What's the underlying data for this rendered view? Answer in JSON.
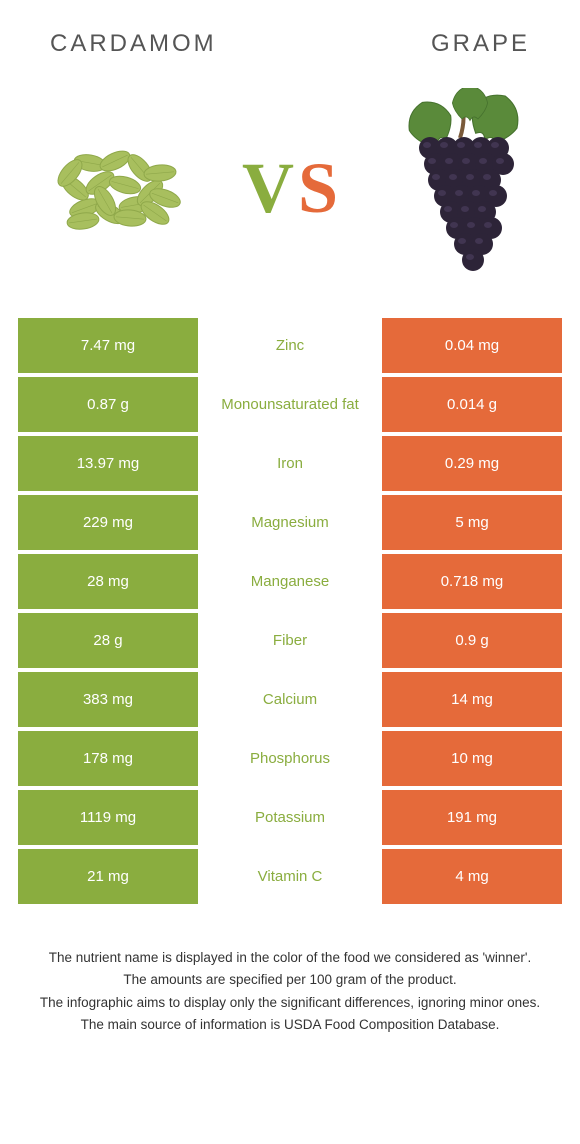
{
  "colors": {
    "green": "#8aad3f",
    "orange": "#e56a3a",
    "pod": "#a8bf5e",
    "podDark": "#8fa84a",
    "grapeBody": "#2d2438",
    "grapeHighlight": "#4a3d5c",
    "leaf": "#5a8a3a",
    "leafDark": "#46722e",
    "stem": "#7a5a3a"
  },
  "header": {
    "left": "Cardamom",
    "right": "Grape"
  },
  "vs": {
    "v": "V",
    "s": "S"
  },
  "rows": [
    {
      "left": "7.47 mg",
      "mid": "Zinc",
      "right": "0.04 mg",
      "winner": "left"
    },
    {
      "left": "0.87 g",
      "mid": "Monounsaturated fat",
      "right": "0.014 g",
      "winner": "left"
    },
    {
      "left": "13.97 mg",
      "mid": "Iron",
      "right": "0.29 mg",
      "winner": "left"
    },
    {
      "left": "229 mg",
      "mid": "Magnesium",
      "right": "5 mg",
      "winner": "left"
    },
    {
      "left": "28 mg",
      "mid": "Manganese",
      "right": "0.718 mg",
      "winner": "left"
    },
    {
      "left": "28 g",
      "mid": "Fiber",
      "right": "0.9 g",
      "winner": "left"
    },
    {
      "left": "383 mg",
      "mid": "Calcium",
      "right": "14 mg",
      "winner": "left"
    },
    {
      "left": "178 mg",
      "mid": "Phosphorus",
      "right": "10 mg",
      "winner": "left"
    },
    {
      "left": "1119 mg",
      "mid": "Potassium",
      "right": "191 mg",
      "winner": "left"
    },
    {
      "left": "21 mg",
      "mid": "Vitamin C",
      "right": "4 mg",
      "winner": "left"
    }
  ],
  "footer": {
    "l1": "The nutrient name is displayed in the color of the food we considered as 'winner'.",
    "l2": "The amounts are specified per 100 gram of the product.",
    "l3": "The infographic aims to display only the significant differences, ignoring minor ones.",
    "l4": "The main source of information is USDA Food Composition Database."
  }
}
